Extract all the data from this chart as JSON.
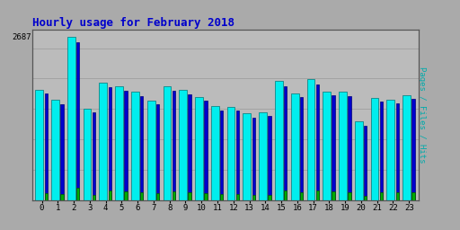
{
  "title": "Hourly usage for February 2018",
  "ylabel_right": "Pages / Files / Hits",
  "hours": [
    0,
    1,
    2,
    3,
    4,
    5,
    6,
    7,
    8,
    9,
    10,
    11,
    12,
    13,
    14,
    15,
    16,
    17,
    18,
    19,
    20,
    21,
    22,
    23
  ],
  "hits_vals": [
    1820,
    1650,
    2687,
    1500,
    1930,
    1870,
    1780,
    1630,
    1870,
    1820,
    1700,
    1550,
    1540,
    1430,
    1450,
    1960,
    1760,
    1990,
    1790,
    1780,
    1290,
    1680,
    1650,
    1720
  ],
  "pages_vals": [
    1750,
    1580,
    2600,
    1440,
    1860,
    1800,
    1710,
    1570,
    1800,
    1740,
    1630,
    1480,
    1480,
    1360,
    1380,
    1880,
    1690,
    1900,
    1720,
    1710,
    1230,
    1620,
    1590,
    1660
  ],
  "files_vals": [
    120,
    100,
    200,
    80,
    155,
    150,
    135,
    110,
    145,
    130,
    120,
    95,
    95,
    85,
    90,
    160,
    135,
    165,
    140,
    135,
    70,
    130,
    125,
    135
  ],
  "bar_color_hits": "#00EEEE",
  "bar_color_pages": "#0000CC",
  "bar_color_files": "#00AA00",
  "bar_edge_hits": "#007777",
  "bar_edge_pages": "#000077",
  "bar_edge_files": "#005500",
  "background_color": "#AAAAAA",
  "plot_bg_color": "#BBBBBB",
  "title_color": "#0000CC",
  "ylabel_color": "#00AAAA",
  "ylim": [
    0,
    2800
  ],
  "ytick_val": 2687,
  "grid_color": "#999999",
  "title_fontsize": 9,
  "tick_fontsize": 6.5
}
